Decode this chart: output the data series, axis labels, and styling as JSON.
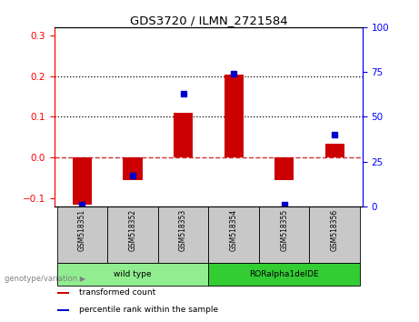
{
  "title": "GDS3720 / ILMN_2721584",
  "samples": [
    "GSM518351",
    "GSM518352",
    "GSM518353",
    "GSM518354",
    "GSM518355",
    "GSM518356"
  ],
  "bar_values": [
    -0.115,
    -0.055,
    0.11,
    0.205,
    -0.055,
    0.035
  ],
  "dot_percentile": [
    1,
    17,
    63,
    74,
    1,
    40
  ],
  "ylim_left": [
    -0.12,
    0.32
  ],
  "ylim_right": [
    0,
    100
  ],
  "yticks_left": [
    -0.1,
    0.0,
    0.1,
    0.2,
    0.3
  ],
  "yticks_right": [
    0,
    25,
    50,
    75,
    100
  ],
  "bar_color": "#CC0000",
  "dot_color": "#0000CC",
  "zero_line_color": "#CC3333",
  "background_color": "#FFFFFF",
  "groups": [
    {
      "label": "wild type",
      "indices": [
        0,
        1,
        2
      ],
      "color": "#90EE90"
    },
    {
      "label": "RORalpha1delDE",
      "indices": [
        3,
        4,
        5
      ],
      "color": "#33CC33"
    }
  ],
  "genotype_label": "genotype/variation",
  "legend_items": [
    {
      "label": "transformed count",
      "color": "#CC0000"
    },
    {
      "label": "percentile rank within the sample",
      "color": "#0000CC"
    }
  ],
  "tick_label_bg": "#C8C8C8",
  "dotted_lines": [
    0.1,
    0.2
  ],
  "zero_dashed": 0.0
}
